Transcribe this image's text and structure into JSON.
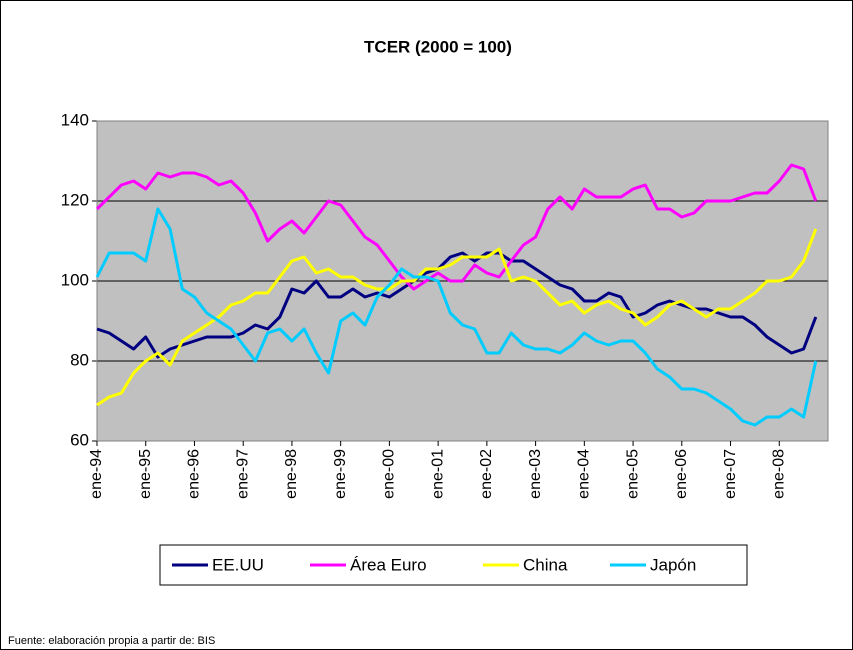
{
  "chart_data": {
    "type": "line",
    "title": "TCER (2000 = 100)",
    "categories": [
      "ene-94",
      null,
      null,
      null,
      "ene-95",
      null,
      null,
      null,
      "ene-96",
      null,
      null,
      null,
      "ene-97",
      null,
      null,
      null,
      "ene-98",
      null,
      null,
      null,
      "ene-99",
      null,
      null,
      null,
      "ene-00",
      null,
      null,
      null,
      "ene-01",
      null,
      null,
      null,
      "ene-02",
      null,
      null,
      null,
      "ene-03",
      null,
      null,
      null,
      "ene-04",
      null,
      null,
      null,
      "ene-05",
      null,
      null,
      null,
      "ene-06",
      null,
      null,
      null,
      "ene-07",
      null,
      null,
      null,
      "ene-08",
      null,
      null,
      null
    ],
    "series": [
      {
        "name": "EE.UU",
        "color": "#000080",
        "values": [
          88,
          87,
          85,
          83,
          86,
          81,
          83,
          84,
          85,
          86,
          86,
          86,
          87,
          89,
          88,
          91,
          98,
          97,
          100,
          96,
          96,
          98,
          96,
          97,
          96,
          98,
          100,
          102,
          103,
          106,
          107,
          105,
          107,
          107,
          105,
          105,
          103,
          101,
          99,
          98,
          95,
          95,
          97,
          96,
          91,
          92,
          94,
          95,
          94,
          93,
          93,
          92,
          91,
          91,
          89,
          86,
          84,
          82,
          83,
          91
        ]
      },
      {
        "name": "Área Euro",
        "color": "#ff00ff",
        "values": [
          118,
          121,
          124,
          125,
          123,
          127,
          126,
          127,
          127,
          126,
          124,
          125,
          122,
          117,
          110,
          113,
          115,
          112,
          116,
          120,
          119,
          115,
          111,
          109,
          105,
          101,
          98,
          100,
          102,
          100,
          100,
          104,
          102,
          101,
          105,
          109,
          111,
          118,
          121,
          118,
          123,
          121,
          121,
          121,
          123,
          124,
          118,
          118,
          116,
          117,
          120,
          120,
          120,
          121,
          122,
          122,
          125,
          129,
          128,
          120
        ]
      },
      {
        "name": "China",
        "color": "#ffff00",
        "values": [
          69,
          71,
          72,
          77,
          80,
          82,
          79,
          85,
          87,
          89,
          91,
          94,
          95,
          97,
          97,
          101,
          105,
          106,
          102,
          103,
          101,
          101,
          99,
          98,
          98,
          100,
          100,
          103,
          103,
          104,
          106,
          106,
          106,
          108,
          100,
          101,
          100,
          97,
          94,
          95,
          92,
          94,
          95,
          93,
          92,
          89,
          91,
          94,
          95,
          93,
          91,
          93,
          93,
          95,
          97,
          100,
          100,
          101,
          105,
          113
        ]
      },
      {
        "name": "Japón",
        "color": "#00ccff",
        "values": [
          101,
          107,
          107,
          107,
          105,
          118,
          113,
          98,
          96,
          92,
          90,
          88,
          84,
          80,
          87,
          88,
          85,
          88,
          82,
          77,
          90,
          92,
          89,
          96,
          99,
          103,
          101,
          101,
          100,
          92,
          89,
          88,
          82,
          82,
          87,
          84,
          83,
          83,
          82,
          84,
          87,
          85,
          84,
          85,
          85,
          82,
          78,
          76,
          73,
          73,
          72,
          70,
          68,
          65,
          64,
          66,
          66,
          68,
          66,
          80
        ]
      }
    ],
    "ylim": [
      60,
      140
    ],
    "yticks": [
      60,
      80,
      100,
      120,
      140
    ],
    "grid": true,
    "legend": "bottom",
    "plot_background": "#c0c0c0",
    "source": "Fuente: elaboración propia a partir de: BIS"
  }
}
